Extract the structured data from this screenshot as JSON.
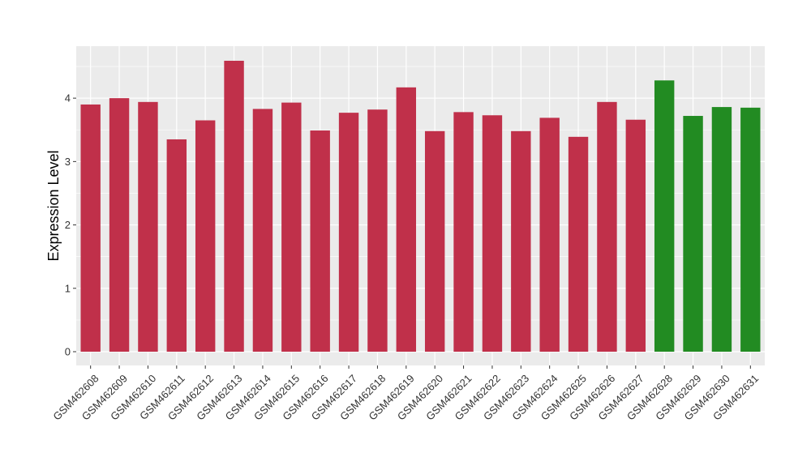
{
  "chart_data": {
    "type": "bar",
    "ylabel": "Expression Level",
    "xlabel": "",
    "ylim": [
      0,
      4.82
    ],
    "yticks": [
      0,
      1,
      2,
      3,
      4
    ],
    "grid": true,
    "legend": "none",
    "colors": {
      "group_a": "#C0304A",
      "group_b": "#228B22",
      "panel": "#EBEBEB",
      "grid": "#FFFFFF"
    },
    "categories": [
      "GSM462608",
      "GSM462609",
      "GSM462610",
      "GSM462611",
      "GSM462612",
      "GSM462613",
      "GSM462614",
      "GSM462615",
      "GSM462616",
      "GSM462617",
      "GSM462618",
      "GSM462619",
      "GSM462620",
      "GSM462621",
      "GSM462622",
      "GSM462623",
      "GSM462624",
      "GSM462625",
      "GSM462626",
      "GSM462627",
      "GSM462628",
      "GSM462629",
      "GSM462630",
      "GSM462631"
    ],
    "values": [
      3.9,
      4.0,
      3.94,
      3.35,
      3.65,
      4.59,
      3.83,
      3.93,
      3.49,
      3.77,
      3.82,
      4.17,
      3.48,
      3.78,
      3.73,
      3.48,
      3.69,
      3.39,
      3.94,
      3.66,
      4.28,
      3.72,
      3.86,
      3.85
    ],
    "bar_groups": [
      "group_a",
      "group_a",
      "group_a",
      "group_a",
      "group_a",
      "group_a",
      "group_a",
      "group_a",
      "group_a",
      "group_a",
      "group_a",
      "group_a",
      "group_a",
      "group_a",
      "group_a",
      "group_a",
      "group_a",
      "group_a",
      "group_a",
      "group_a",
      "group_b",
      "group_b",
      "group_b",
      "group_b"
    ]
  }
}
